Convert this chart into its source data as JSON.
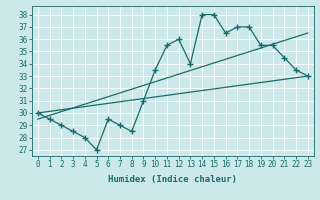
{
  "xlabel": "Humidex (Indice chaleur)",
  "bg_color": "#cce8ea",
  "grid_color": "#b0d8dc",
  "line_color": "#1a6b6b",
  "xlim": [
    -0.5,
    23.5
  ],
  "ylim": [
    26.5,
    38.7
  ],
  "xticks": [
    0,
    1,
    2,
    3,
    4,
    5,
    6,
    7,
    8,
    9,
    10,
    11,
    12,
    13,
    14,
    15,
    16,
    17,
    18,
    19,
    20,
    21,
    22,
    23
  ],
  "yticks": [
    27,
    28,
    29,
    30,
    31,
    32,
    33,
    34,
    35,
    36,
    37,
    38
  ],
  "series1_x": [
    0,
    1,
    2,
    3,
    4,
    5,
    6,
    7,
    8,
    9,
    10,
    11,
    12,
    13,
    14,
    15,
    16,
    17,
    18,
    19,
    20,
    21,
    22,
    23
  ],
  "series1_y": [
    30.0,
    29.5,
    29.0,
    28.5,
    28.0,
    27.0,
    29.5,
    29.0,
    28.5,
    31.0,
    33.5,
    35.5,
    36.0,
    34.0,
    38.0,
    38.0,
    36.5,
    37.0,
    37.0,
    35.5,
    35.5,
    34.5,
    33.5,
    33.0
  ],
  "series2_x": [
    0,
    23
  ],
  "series2_y": [
    30.0,
    33.0
  ],
  "series3_x": [
    0,
    23
  ],
  "series3_y": [
    29.5,
    36.5
  ]
}
